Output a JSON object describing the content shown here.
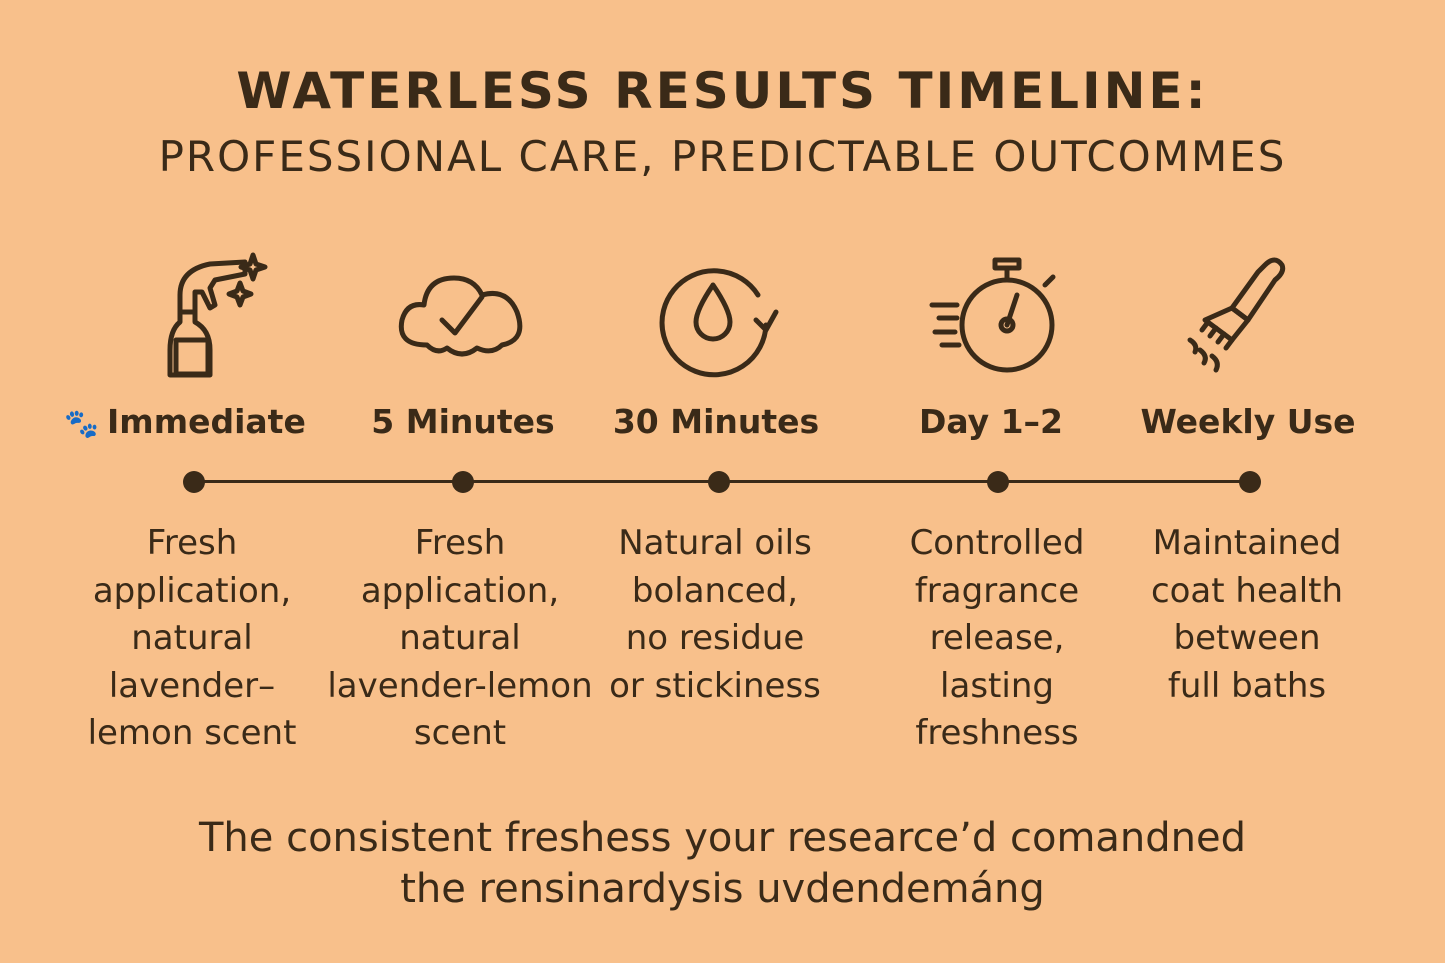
{
  "header": {
    "title": "WATERLESS RESULTS TIMELINE:",
    "subtitle": "PROFESSIONAL CARE, PREDICTABLE OUTCOMMES"
  },
  "timeline": [
    {
      "icon": "spray-bottle-icon",
      "label": "Immediate",
      "label_icon": "paw-icon",
      "description": "Fresh\napplication,\nnatural\nlavender–\nlemon scent"
    },
    {
      "icon": "cloud-check-icon",
      "label": "5 Minutes",
      "description": "Fresh\napplication,\nnatural\nlavender-lemon\nscent"
    },
    {
      "icon": "droplet-cycle-icon",
      "label": "30 Minutes",
      "description": "Natural oils\nbolanced,\nno residue\nor stickiness"
    },
    {
      "icon": "stopwatch-icon",
      "label": "Day 1–2",
      "description": "Controlled\nfragrance\nrelease,\nlasting\nfreshness"
    },
    {
      "icon": "grooming-brush-icon",
      "label": "Weekly Use",
      "description": "Maintained\ncoat health\nbetween\nfull baths"
    }
  ],
  "footer": {
    "line1": "The consistent freshess your researce’d comandned",
    "line2": "the rensinardysis uvdendemáng"
  },
  "colors": {
    "background": "#f8c08b",
    "text": "#3a2a18"
  }
}
